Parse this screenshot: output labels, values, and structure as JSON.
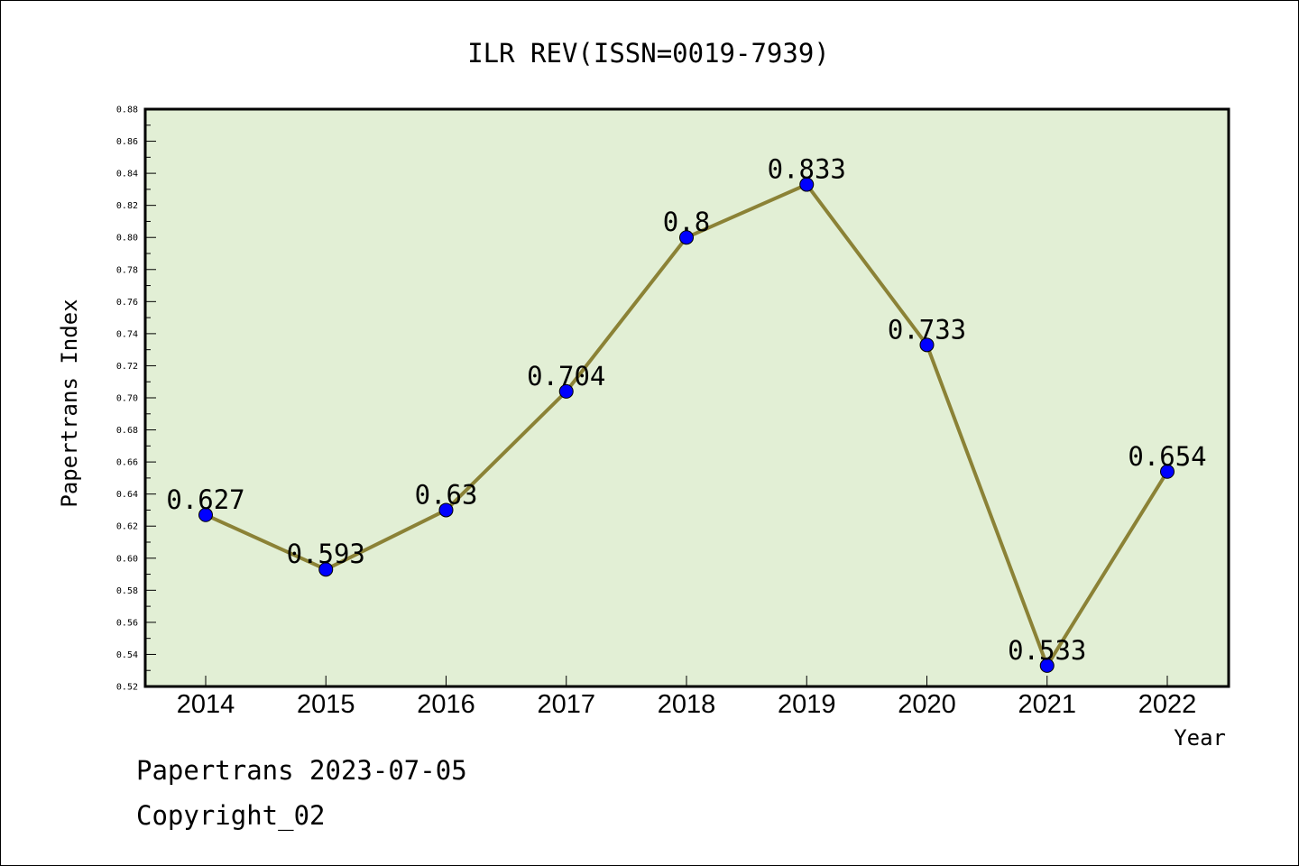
{
  "chart_data": {
    "type": "line",
    "title": "ILR REV(ISSN=0019-7939)",
    "xlabel": "Year",
    "ylabel": "Papertrans Index",
    "categories": [
      "2014",
      "2015",
      "2016",
      "2017",
      "2018",
      "2019",
      "2020",
      "2021",
      "2022"
    ],
    "series": [
      {
        "values": [
          0.627,
          0.593,
          0.63,
          0.704,
          0.8,
          0.833,
          0.733,
          0.533,
          0.654
        ],
        "data_labels": [
          "0.627",
          "0.593",
          "0.63",
          "0.704",
          "0.8",
          "0.833",
          "0.733",
          "0.533",
          "0.654"
        ]
      }
    ],
    "ylim": [
      0.52,
      0.88
    ],
    "yticks": [
      "0.52",
      "0.54",
      "0.56",
      "0.58",
      "0.60",
      "0.62",
      "0.64",
      "0.66",
      "0.68",
      "0.70",
      "0.72",
      "0.74",
      "0.76",
      "0.78",
      "0.80",
      "0.82",
      "0.84",
      "0.86",
      "0.88"
    ],
    "grid": false,
    "colors": {
      "plot_background": "#e2efd5",
      "line": "#8b8236",
      "marker": "#0000ff"
    }
  },
  "footer": {
    "line1": "Papertrans 2023-07-05",
    "line2": "Copyright_02"
  }
}
